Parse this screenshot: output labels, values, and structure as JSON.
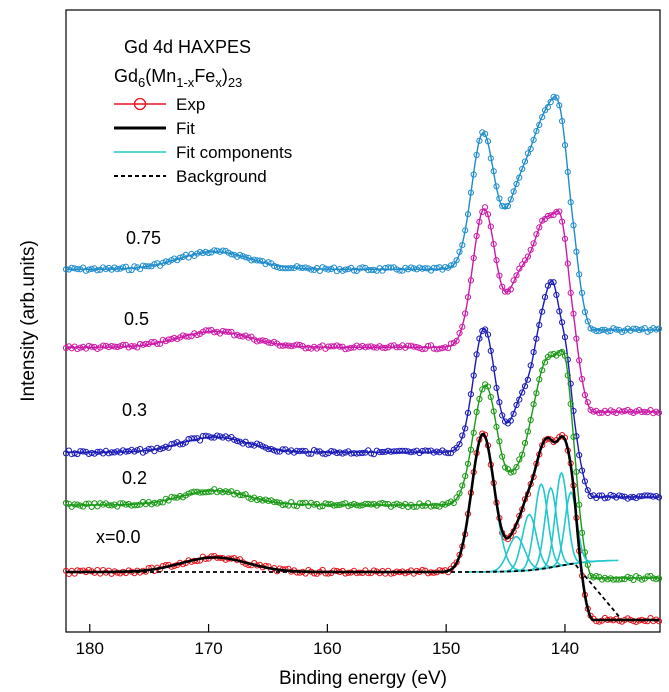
{
  "chart_data": {
    "type": "line",
    "xlabel": "Binding energy (eV)",
    "ylabel": "Intensity (arb.units)",
    "xlim": [
      182,
      132
    ],
    "x_reversed": true,
    "x_ticks": [
      180,
      170,
      160,
      150,
      140
    ],
    "y_ticks": [],
    "grid": false,
    "legend": {
      "title": "Gd 4d HAXPES",
      "subtitle_parts": [
        "Gd",
        "6",
        "(Mn",
        "1-x",
        "Fe",
        "x",
        ")",
        "23"
      ],
      "placement": "top-left",
      "entries": [
        {
          "label": "Exp",
          "color": "#e8141c",
          "style": "line-circle"
        },
        {
          "label": "Fit",
          "color": "#000000",
          "style": "thick-line"
        },
        {
          "label": "Fit components",
          "color": "#22c8cc",
          "style": "line"
        },
        {
          "label": "Background",
          "color": "#000000",
          "style": "dashed"
        }
      ]
    },
    "series": [
      {
        "name": "x=0.0",
        "color": "#e8141c",
        "fit_color": "#000000",
        "offset": 0.0
      },
      {
        "name": "0.2",
        "color": "#1a9a16",
        "offset": 0.03
      },
      {
        "name": "0.3",
        "color": "#1a1ab8",
        "offset": 0.14
      },
      {
        "name": "0.5",
        "color": "#cc1aa8",
        "offset": 0.27
      },
      {
        "name": "0.75",
        "color": "#1e8ccc",
        "offset": 0.34
      }
    ],
    "fit_components_centers_eV": [
      146.9,
      144.1,
      143.0,
      142.0,
      141.2,
      140.3,
      139.5
    ],
    "colors": {
      "exp": "#e8141c",
      "fit": "#000000",
      "components": "#22c8cc",
      "background": "#000000"
    }
  }
}
